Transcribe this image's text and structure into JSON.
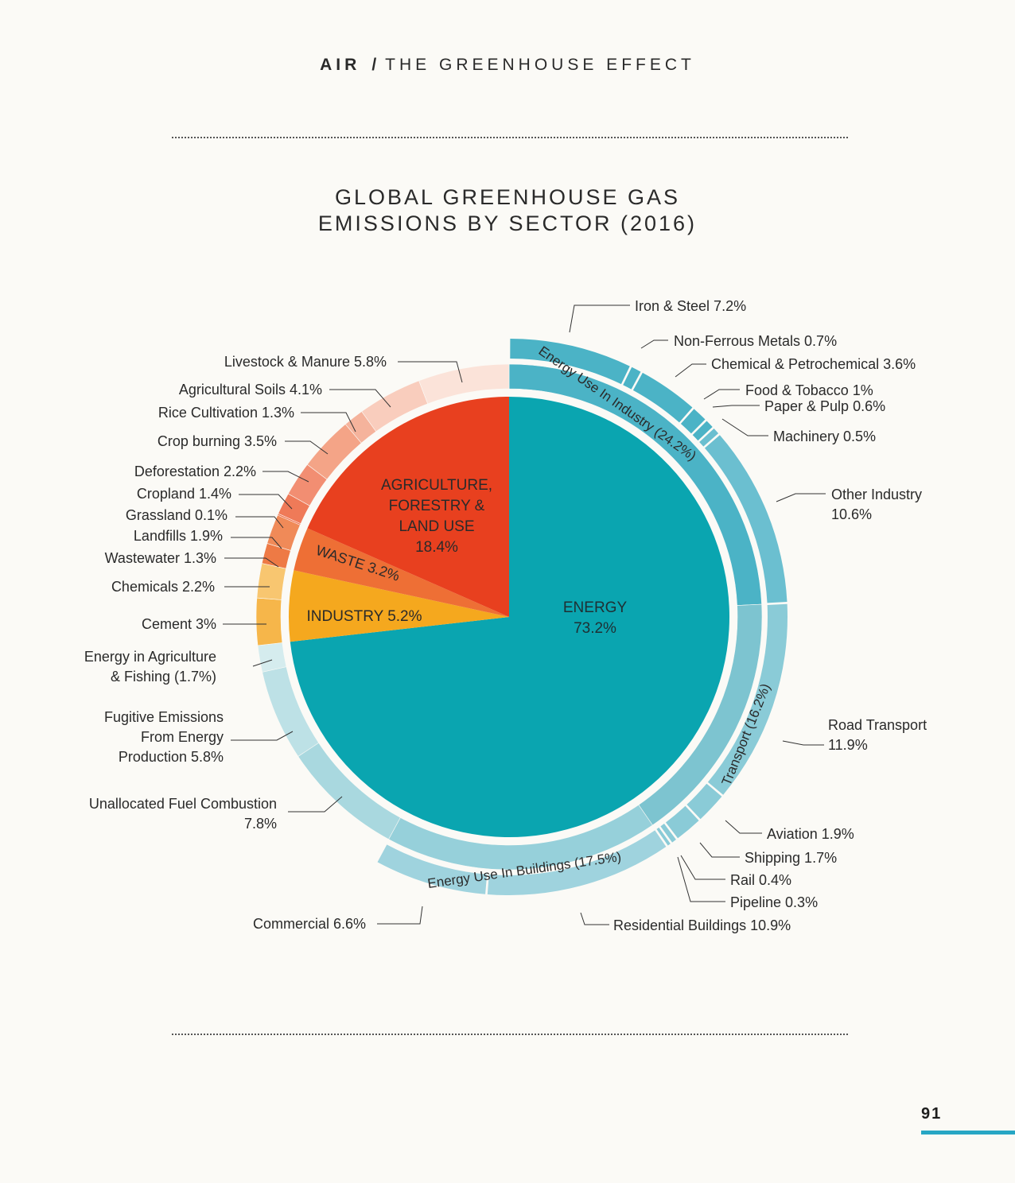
{
  "header": {
    "section": "AIR",
    "separator": "/",
    "topic": "THE GREENHOUSE EFFECT"
  },
  "page_number": "91",
  "colors": {
    "energy": "#0aa5b0",
    "agriculture": "#e8401f",
    "waste": "#ee6f35",
    "industry": "#f5a81e",
    "page_accent": "#27a6c4"
  },
  "chart_data": {
    "type": "pie",
    "title_lines": [
      "GLOBAL GREENHOUSE GAS",
      "EMISSIONS BY SECTOR (2016)"
    ],
    "center": {
      "slices": [
        {
          "name": "Energy",
          "value": 73.2,
          "label_lines": [
            "ENERGY",
            "73.2%"
          ],
          "color": "#0aa5b0"
        },
        {
          "name": "Industry",
          "value": 5.2,
          "label_lines": [
            "INDUSTRY 5.2%"
          ],
          "color": "#f5a81e"
        },
        {
          "name": "Waste",
          "value": 3.2,
          "label_lines": [
            "WASTE 3.2%"
          ],
          "color": "#ee6f35"
        },
        {
          "name": "Agriculture, Forestry & Land Use",
          "value": 18.4,
          "label_lines": [
            "AGRICULTURE,",
            "FORESTRY &",
            "LAND USE",
            "18.4%"
          ],
          "color": "#e8401f"
        }
      ]
    },
    "middle_ring": [
      {
        "name": "Energy Use In Industry",
        "value": 24.2,
        "label": "Energy Use In Industry (24.2%)",
        "color": "#4bb3c6"
      },
      {
        "name": "Transport",
        "value": 16.2,
        "label": "Transport (16.2%)",
        "color": "#7dc4d0"
      },
      {
        "name": "Energy Use In Buildings",
        "value": 17.5,
        "label": "Energy Use In Buildings (17.5%)",
        "color": "#96d0da"
      },
      {
        "name": "Unallocated Fuel Combustion",
        "value": 7.8,
        "color": "#a9d8df"
      },
      {
        "name": "Fugitive Emissions From Energy Production",
        "value": 5.8,
        "color": "#bde1e6"
      },
      {
        "name": "Energy in Agriculture & Fishing",
        "value": 1.7,
        "color": "#d5ecee"
      },
      {
        "name": "Cement",
        "value": 3,
        "color": "#f6b64a"
      },
      {
        "name": "Chemicals",
        "value": 2.2,
        "color": "#f8c670"
      },
      {
        "name": "Wastewater",
        "value": 1.3,
        "color": "#ee7a45"
      },
      {
        "name": "Landfills",
        "value": 1.9,
        "color": "#f08a58"
      },
      {
        "name": "Grassland",
        "value": 0.1,
        "color": "#ef6d4a"
      },
      {
        "name": "Cropland",
        "value": 1.4,
        "color": "#ef7a58"
      },
      {
        "name": "Deforestation",
        "value": 2.2,
        "color": "#f28e72"
      },
      {
        "name": "Crop burning",
        "value": 3.5,
        "color": "#f4a487"
      },
      {
        "name": "Rice Cultivation",
        "value": 1.3,
        "color": "#f5b39c"
      },
      {
        "name": "Agricultural Soils",
        "value": 4.1,
        "color": "#f9cdbd"
      },
      {
        "name": "Livestock & Manure",
        "value": 5.8,
        "color": "#fbe3d9"
      }
    ],
    "outer_ring": [
      {
        "name": "Iron & Steel",
        "value": 7.2,
        "color": "#4bb3c6"
      },
      {
        "name": "Non-Ferrous Metals",
        "value": 0.7,
        "color": "#4bb3c6"
      },
      {
        "name": "Chemical & Petrochemical",
        "value": 3.6,
        "color": "#4bb3c6"
      },
      {
        "name": "Food & Tobacco",
        "value": 1,
        "color": "#4bb3c6"
      },
      {
        "name": "Paper & Pulp",
        "value": 0.6,
        "color": "#4bb3c6"
      },
      {
        "name": "Machinery",
        "value": 0.5,
        "color": "#6bbfd0"
      },
      {
        "name": "Other Industry",
        "value": 10.6,
        "color": "#6bbfd0"
      },
      {
        "name": "Road Transport",
        "value": 11.9,
        "color": "#8acbd7"
      },
      {
        "name": "Aviation",
        "value": 1.9,
        "color": "#8acbd7"
      },
      {
        "name": "Shipping",
        "value": 1.7,
        "color": "#8acbd7"
      },
      {
        "name": "Rail",
        "value": 0.4,
        "color": "#8acbd7"
      },
      {
        "name": "Pipeline",
        "value": 0.3,
        "color": "#8acbd7"
      },
      {
        "name": "Residential Buildings",
        "value": 10.9,
        "color": "#9fd3de"
      },
      {
        "name": "Commercial",
        "value": 6.6,
        "color": "#9fd3de"
      }
    ],
    "labels": {
      "iron_steel": [
        "Iron & Steel 7.2%"
      ],
      "non_ferrous": [
        "Non-Ferrous Metals 0.7%"
      ],
      "chemical_petrochemical": [
        "Chemical & Petrochemical 3.6%"
      ],
      "food_tobacco": [
        "Food & Tobacco 1%"
      ],
      "paper_pulp": [
        "Paper & Pulp 0.6%"
      ],
      "machinery": [
        "Machinery 0.5%"
      ],
      "other_industry": [
        "Other Industry",
        "10.6%"
      ],
      "road_transport": [
        "Road Transport",
        "11.9%"
      ],
      "aviation": [
        "Aviation 1.9%"
      ],
      "shipping": [
        "Shipping 1.7%"
      ],
      "rail": [
        "Rail 0.4%"
      ],
      "pipeline": [
        "Pipeline 0.3%"
      ],
      "residential": [
        "Residential Buildings 10.9%"
      ],
      "commercial": [
        "Commercial 6.6%"
      ],
      "unallocated": [
        "Unallocated Fuel Combustion",
        "7.8%"
      ],
      "fugitive": [
        "Fugitive Emissions",
        "From Energy",
        "Production 5.8%"
      ],
      "energy_agriculture": [
        "Energy in Agriculture",
        "& Fishing (1.7%)"
      ],
      "cement": [
        "Cement 3%"
      ],
      "chemicals": [
        "Chemicals 2.2%"
      ],
      "wastewater": [
        "Wastewater 1.3%"
      ],
      "landfills": [
        "Landfills 1.9%"
      ],
      "grassland": [
        "Grassland 0.1%"
      ],
      "cropland": [
        "Cropland 1.4%"
      ],
      "deforestation": [
        "Deforestation 2.2%"
      ],
      "crop_burning": [
        "Crop burning 3.5%"
      ],
      "rice": [
        "Rice Cultivation 1.3%"
      ],
      "agricultural_soils": [
        "Agricultural Soils 4.1%"
      ],
      "livestock": [
        "Livestock & Manure 5.8%"
      ]
    }
  }
}
